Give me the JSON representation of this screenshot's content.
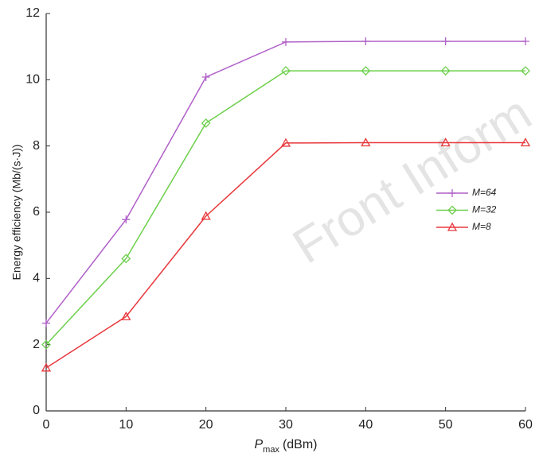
{
  "chart_data": {
    "type": "line",
    "xlabel": {
      "symbol": "P",
      "subscript": "max",
      "unit": "(dBm)"
    },
    "ylabel": "Energy efficiency (Mb/(s·J))",
    "watermark": "Front Inform",
    "x": [
      0,
      10,
      20,
      30,
      40,
      50,
      60
    ],
    "series": [
      {
        "name": "M=64",
        "color": "#b060c8",
        "marker": "plus",
        "values": [
          2.65,
          5.78,
          10.08,
          11.14,
          11.16,
          11.16,
          11.16
        ]
      },
      {
        "name": "M=32",
        "color": "#6ccf4a",
        "marker": "diamond",
        "values": [
          2.0,
          4.6,
          8.69,
          10.27,
          10.27,
          10.27,
          10.27
        ]
      },
      {
        "name": "M=8",
        "color": "#e8383d",
        "marker": "triangle",
        "values": [
          1.3,
          2.85,
          5.88,
          8.09,
          8.1,
          8.1,
          8.1
        ]
      }
    ],
    "xlim": [
      0,
      60
    ],
    "xticks": [
      0,
      10,
      20,
      30,
      40,
      50,
      60
    ],
    "ylim": [
      0,
      12
    ],
    "yticks": [
      0,
      2,
      4,
      6,
      8,
      10,
      12
    ],
    "grid": false,
    "legend": "right"
  }
}
